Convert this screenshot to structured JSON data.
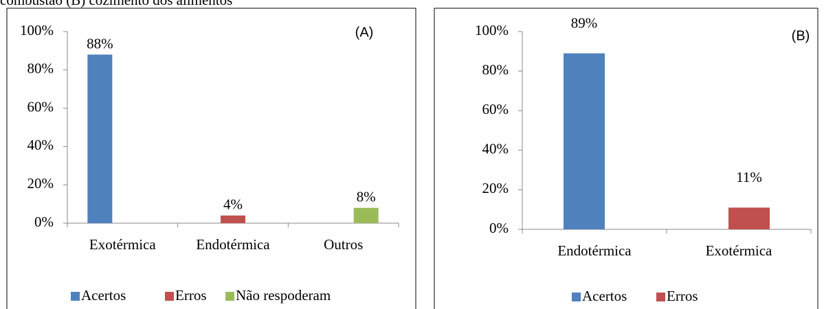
{
  "caption": "combustão (B) cozimento dos alimentos",
  "chart_data": [
    {
      "type": "bar",
      "annotation": "(A)",
      "categories": [
        "Exotérmica",
        "Endotérmica",
        "Outros"
      ],
      "series": [
        {
          "name": "Acertos",
          "color": "#4f81bd",
          "values": [
            88,
            null,
            null
          ],
          "value_labels": [
            "88%",
            null,
            null
          ]
        },
        {
          "name": "Erros",
          "color": "#c0504d",
          "values": [
            null,
            4,
            null
          ],
          "value_labels": [
            null,
            "4%",
            null
          ]
        },
        {
          "name": "Não respoderam",
          "color": "#9bbb59",
          "values": [
            null,
            null,
            8
          ],
          "value_labels": [
            null,
            null,
            "8%"
          ]
        }
      ],
      "ylim": [
        0,
        100
      ],
      "yticks": [
        {
          "value": 0,
          "label": "0%"
        },
        {
          "value": 20,
          "label": "20%"
        },
        {
          "value": 40,
          "label": "40%"
        },
        {
          "value": 60,
          "label": "60%"
        },
        {
          "value": 80,
          "label": "80%"
        },
        {
          "value": 100,
          "label": "100%"
        }
      ],
      "legend": "bottom"
    },
    {
      "type": "bar",
      "annotation": "(B)",
      "categories": [
        "Endotérmica",
        "Exotérmica"
      ],
      "series": [
        {
          "name": "Acertos",
          "color": "#4f81bd",
          "values": [
            89,
            null
          ],
          "value_labels": [
            "89%",
            null
          ]
        },
        {
          "name": "Erros",
          "color": "#c0504d",
          "values": [
            null,
            11
          ],
          "value_labels": [
            null,
            "11%"
          ]
        }
      ],
      "ylim": [
        0,
        100
      ],
      "yticks": [
        {
          "value": 0,
          "label": "0%"
        },
        {
          "value": 20,
          "label": "20%"
        },
        {
          "value": 40,
          "label": "40%"
        },
        {
          "value": 60,
          "label": "60%"
        },
        {
          "value": 80,
          "label": "80%"
        },
        {
          "value": 100,
          "label": "100%"
        }
      ],
      "legend": "bottom"
    }
  ]
}
